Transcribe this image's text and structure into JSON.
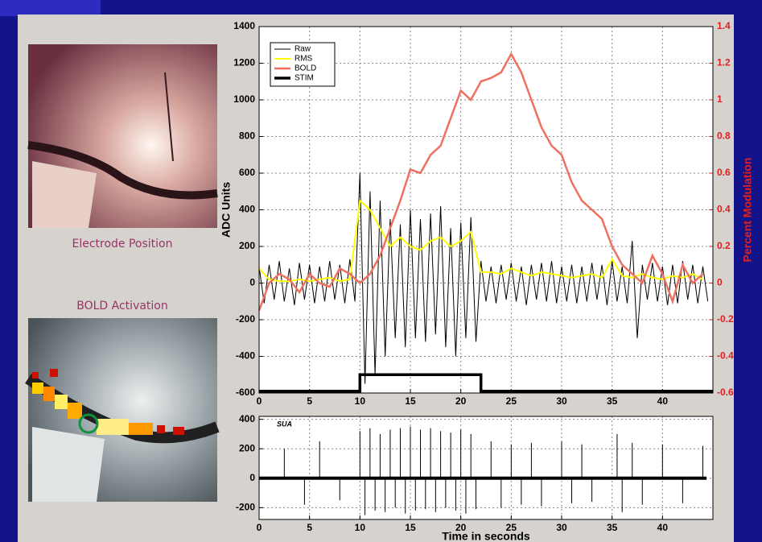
{
  "panels": {
    "electrode_caption": "Electrode Position",
    "bold_caption": "BOLD Activation"
  },
  "chart_data": [
    {
      "type": "line",
      "ylabel": "ADC Units",
      "y2label": "Percent Modulation",
      "x": [
        0,
        1,
        2,
        3,
        4,
        5,
        6,
        7,
        8,
        9,
        10,
        11,
        12,
        13,
        14,
        15,
        16,
        17,
        18,
        19,
        20,
        21,
        22,
        23,
        24,
        25,
        26,
        27,
        28,
        29,
        30,
        31,
        32,
        33,
        34,
        35,
        36,
        37,
        38,
        39,
        40,
        41,
        42,
        43,
        44
      ],
      "xlim": [
        0,
        45
      ],
      "xticks": [
        0,
        5,
        10,
        15,
        20,
        25,
        30,
        35,
        40
      ],
      "ylim": [
        -600,
        1400
      ],
      "yticks": [
        -600,
        -400,
        -200,
        0,
        200,
        400,
        600,
        800,
        1000,
        1200,
        1400
      ],
      "y2lim": [
        -0.6,
        1.4
      ],
      "y2ticks": [
        -0.6,
        -0.4,
        -0.2,
        0,
        0.2,
        0.4,
        0.6,
        0.8,
        1,
        1.2,
        1.4
      ],
      "grid": true,
      "legend": "upper left",
      "series": [
        {
          "name": "Raw",
          "color": "#000000",
          "linewidth": 1,
          "x": [
            0,
            0.5,
            1,
            1.5,
            2,
            2.5,
            3,
            3.5,
            4,
            4.5,
            5,
            5.5,
            6,
            6.5,
            7,
            7.5,
            8,
            8.5,
            9,
            9.5,
            10,
            10.5,
            11,
            11.5,
            12,
            12.5,
            13,
            13.5,
            14,
            14.5,
            15,
            15.5,
            16,
            16.5,
            17,
            17.5,
            18,
            18.5,
            19,
            19.5,
            20,
            20.5,
            21,
            21.5,
            22,
            22.5,
            23,
            23.5,
            24,
            24.5,
            25,
            25.5,
            26,
            26.5,
            27,
            27.5,
            28,
            28.5,
            29,
            29.5,
            30,
            30.5,
            31,
            31.5,
            32,
            32.5,
            33,
            33.5,
            34,
            34.5,
            35,
            35.5,
            36,
            36.5,
            37,
            37.5,
            38,
            38.5,
            39,
            39.5,
            40,
            40.5,
            41,
            41.5,
            42,
            42.5,
            43,
            43.5,
            44,
            44.5
          ],
          "values": [
            90,
            -110,
            100,
            -90,
            120,
            -100,
            80,
            -120,
            110,
            -90,
            100,
            -110,
            90,
            -100,
            120,
            -90,
            100,
            -110,
            130,
            -100,
            600,
            -550,
            500,
            -500,
            450,
            -400,
            350,
            -300,
            320,
            -350,
            400,
            -300,
            350,
            -320,
            380,
            -280,
            420,
            -350,
            300,
            -400,
            330,
            -300,
            360,
            -320,
            120,
            -100,
            90,
            -110,
            100,
            -90,
            110,
            -100,
            90,
            -120,
            100,
            -90,
            110,
            -100,
            120,
            -110,
            90,
            -100,
            100,
            -110,
            90,
            -100,
            110,
            -90,
            100,
            -120,
            120,
            -100,
            90,
            -110,
            230,
            -300,
            100,
            -90,
            110,
            -100,
            90,
            -120,
            100,
            -110,
            120,
            -90,
            100,
            -110,
            90,
            -100
          ]
        },
        {
          "name": "RMS",
          "color": "#ffff00",
          "linewidth": 2,
          "values": [
            80,
            20,
            10,
            10,
            20,
            10,
            20,
            30,
            10,
            20,
            450,
            400,
            300,
            200,
            250,
            200,
            180,
            230,
            250,
            200,
            230,
            280,
            60,
            60,
            50,
            80,
            60,
            40,
            60,
            50,
            40,
            30,
            40,
            50,
            30,
            130,
            40,
            30,
            50,
            30,
            20,
            40,
            30,
            50,
            20
          ]
        },
        {
          "name": "BOLD",
          "color": "#f07060",
          "linewidth": 2.5,
          "axis": "y2",
          "values": [
            -0.15,
            0,
            0.05,
            0.02,
            -0.05,
            0.05,
            0,
            -0.02,
            0.08,
            0.05,
            0,
            0.05,
            0.15,
            0.3,
            0.45,
            0.62,
            0.6,
            0.7,
            0.75,
            0.9,
            1.05,
            1,
            1.1,
            1.12,
            1.15,
            1.25,
            1.15,
            1,
            0.85,
            0.75,
            0.7,
            0.55,
            0.45,
            0.4,
            0.35,
            0.2,
            0.1,
            0.05,
            0,
            0.15,
            0.05,
            -0.1,
            0.1,
            0,
            0.05
          ]
        },
        {
          "name": "STIM",
          "color": "#000000",
          "linewidth": 3.5,
          "x": [
            0,
            10,
            10,
            22,
            22,
            45
          ],
          "values": [
            -590,
            -590,
            -500,
            -500,
            -590,
            -590
          ]
        }
      ]
    },
    {
      "type": "spike",
      "annotation": "SUA",
      "xlabel": "Time in seconds",
      "color": "#000000",
      "xlim": [
        0,
        45
      ],
      "xticks": [
        0,
        5,
        10,
        15,
        20,
        25,
        30,
        35,
        40
      ],
      "ylim": [
        -280,
        420
      ],
      "yticks": [
        -200,
        0,
        200,
        400
      ],
      "grid": true,
      "x": [
        2.5,
        4.5,
        6,
        8,
        10,
        10.5,
        11,
        11.5,
        12,
        12.5,
        13,
        13.5,
        14,
        14.5,
        15,
        15.5,
        16,
        16.5,
        17,
        17.5,
        18,
        18.5,
        19,
        19.5,
        20,
        20.5,
        21,
        21.5,
        23,
        24,
        25,
        26,
        27,
        28,
        30,
        31,
        32,
        33,
        35.5,
        36,
        37,
        38,
        40,
        42,
        44
      ],
      "values": [
        200,
        -180,
        250,
        -150,
        320,
        -250,
        340,
        -220,
        300,
        -230,
        330,
        -200,
        340,
        -240,
        350,
        -220,
        330,
        -210,
        340,
        -230,
        320,
        -200,
        310,
        -220,
        330,
        -240,
        300,
        -210,
        250,
        -200,
        230,
        -180,
        240,
        -190,
        250,
        -170,
        230,
        -160,
        300,
        -230,
        240,
        -180,
        230,
        -170,
        220
      ]
    }
  ]
}
